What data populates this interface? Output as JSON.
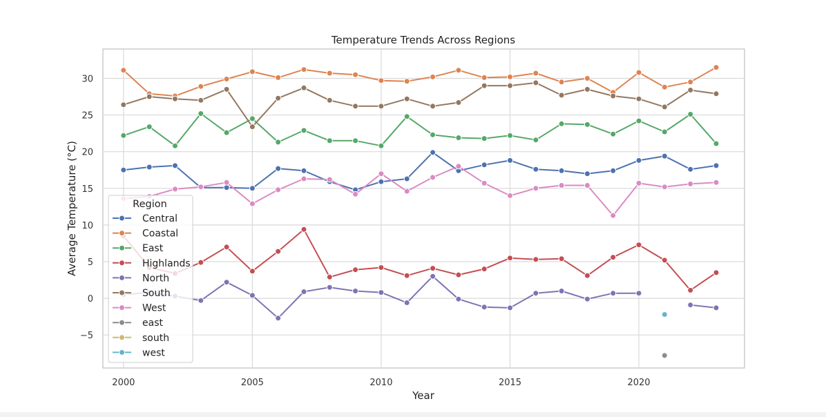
{
  "chart_data": {
    "type": "line",
    "title": "Temperature Trends Across Regions",
    "xlabel": "Year",
    "ylabel": "Average Temperature (°C)",
    "xlim": [
      1999.2,
      2024.1
    ],
    "ylim": [
      -9.5,
      34
    ],
    "x_ticks": [
      2000,
      2005,
      2010,
      2015,
      2020
    ],
    "y_ticks": [
      -5,
      0,
      5,
      10,
      15,
      20,
      25,
      30
    ],
    "grid": true,
    "legend": {
      "title": "Region",
      "placement": "lower-left"
    },
    "x": [
      2000,
      2001,
      2002,
      2003,
      2004,
      2005,
      2006,
      2007,
      2008,
      2009,
      2010,
      2011,
      2012,
      2013,
      2014,
      2015,
      2016,
      2017,
      2018,
      2019,
      2020,
      2021,
      2022,
      2023
    ],
    "series": [
      {
        "name": "Central",
        "color": "#4c72b0",
        "values": [
          17.5,
          17.9,
          18.1,
          15.1,
          15.1,
          15.0,
          17.7,
          17.4,
          15.9,
          14.8,
          15.9,
          16.3,
          19.9,
          17.4,
          18.2,
          18.8,
          17.6,
          17.4,
          17.0,
          17.4,
          18.8,
          19.4,
          17.6,
          18.1
        ]
      },
      {
        "name": "Coastal",
        "color": "#dd8452",
        "values": [
          31.1,
          27.9,
          27.6,
          28.9,
          29.9,
          30.9,
          30.1,
          31.2,
          30.7,
          30.5,
          29.7,
          29.6,
          30.2,
          31.1,
          30.1,
          30.2,
          30.7,
          29.5,
          30.0,
          28.1,
          30.8,
          28.8,
          29.5,
          31.5
        ]
      },
      {
        "name": "East",
        "color": "#55a868",
        "values": [
          22.2,
          23.4,
          20.8,
          25.2,
          22.6,
          24.5,
          21.3,
          22.9,
          21.5,
          21.5,
          20.8,
          24.8,
          22.3,
          21.9,
          21.8,
          22.2,
          21.6,
          23.8,
          23.7,
          22.4,
          24.2,
          22.7,
          25.1,
          21.1
        ]
      },
      {
        "name": "Highlands",
        "color": "#c44e52",
        "values": [
          8.5,
          4.2,
          3.4,
          4.9,
          7.0,
          3.7,
          6.4,
          9.4,
          2.9,
          3.9,
          4.2,
          3.1,
          4.1,
          3.2,
          4.0,
          5.5,
          5.3,
          5.4,
          3.1,
          5.6,
          7.3,
          5.2,
          1.1,
          3.5
        ]
      },
      {
        "name": "North",
        "color": "#8172b3",
        "values": [
          0.5,
          0.8,
          0.3,
          -0.3,
          2.2,
          0.4,
          -2.7,
          0.9,
          1.5,
          1.0,
          0.8,
          -0.6,
          3.0,
          -0.1,
          -1.2,
          -1.3,
          0.7,
          1.0,
          -0.1,
          0.7,
          0.7,
          null,
          -0.9,
          -1.3
        ]
      },
      {
        "name": "South",
        "color": "#937860",
        "values": [
          26.4,
          27.5,
          27.2,
          27.0,
          28.5,
          23.4,
          27.3,
          28.7,
          27.0,
          26.2,
          26.2,
          27.2,
          26.2,
          26.7,
          29.0,
          29.0,
          29.4,
          27.7,
          28.5,
          27.6,
          27.2,
          26.1,
          28.4,
          27.9
        ]
      },
      {
        "name": "West",
        "color": "#da8bc3",
        "values": [
          13.6,
          13.9,
          14.9,
          15.2,
          15.8,
          12.9,
          14.8,
          16.3,
          16.2,
          14.2,
          17.0,
          14.6,
          16.5,
          18.0,
          15.7,
          14.0,
          15.0,
          15.4,
          15.4,
          11.3,
          15.7,
          15.2,
          15.6,
          15.8
        ]
      },
      {
        "name": "east",
        "color": "#8c8c8c",
        "values": [
          null,
          null,
          null,
          null,
          null,
          null,
          null,
          null,
          null,
          null,
          null,
          null,
          null,
          null,
          null,
          null,
          null,
          null,
          null,
          null,
          null,
          -7.8,
          null,
          null
        ]
      },
      {
        "name": "south",
        "color": "#ccb974",
        "values": [
          null,
          null,
          null,
          null,
          null,
          null,
          null,
          null,
          null,
          null,
          null,
          null,
          null,
          null,
          null,
          null,
          null,
          null,
          null,
          null,
          null,
          null,
          null,
          null
        ]
      },
      {
        "name": "west",
        "color": "#64b5cd",
        "values": [
          null,
          null,
          null,
          null,
          null,
          null,
          null,
          null,
          null,
          null,
          null,
          null,
          null,
          null,
          null,
          null,
          null,
          null,
          null,
          null,
          null,
          -2.2,
          null,
          null
        ]
      }
    ]
  }
}
